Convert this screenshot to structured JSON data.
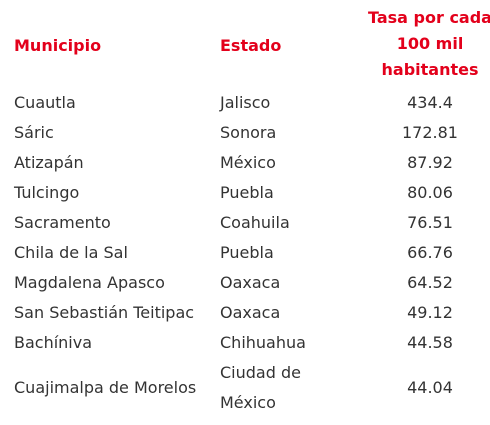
{
  "headers": {
    "municipio": "Municipio",
    "estado": "Estado",
    "tasa": "Tasa por cada 100 mil habitantes"
  },
  "rows": [
    {
      "municipio": "Cuautla",
      "estado": "Jalisco",
      "tasa": "434.4"
    },
    {
      "municipio": "Sáric",
      "estado": "Sonora",
      "tasa": "172.81"
    },
    {
      "municipio": "Atizapán",
      "estado": "México",
      "tasa": "87.92"
    },
    {
      "municipio": "Tulcingo",
      "estado": "Puebla",
      "tasa": "80.06"
    },
    {
      "municipio": "Sacramento",
      "estado": "Coahuila",
      "tasa": "76.51"
    },
    {
      "municipio": "Chila de la Sal",
      "estado": "Puebla",
      "tasa": "66.76"
    },
    {
      "municipio": "Magdalena Apasco",
      "estado": "Oaxaca",
      "tasa": "64.52"
    },
    {
      "municipio": "San Sebastián Teitipac",
      "estado": "Oaxaca",
      "tasa": "49.12"
    },
    {
      "municipio": "Bachíniva",
      "estado": "Chihuahua",
      "tasa": "44.58"
    },
    {
      "municipio": "Cuajimalpa de Morelos",
      "estado": "Ciudad de México",
      "tasa": "44.04"
    }
  ],
  "colors": {
    "header": "#e3001b",
    "text": "#333333"
  }
}
